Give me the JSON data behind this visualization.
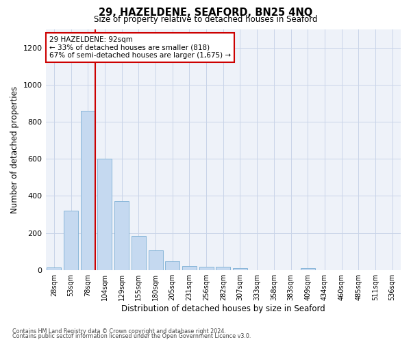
{
  "title1": "29, HAZELDENE, SEAFORD, BN25 4NQ",
  "title2": "Size of property relative to detached houses in Seaford",
  "xlabel": "Distribution of detached houses by size in Seaford",
  "ylabel": "Number of detached properties",
  "bar_labels": [
    "28sqm",
    "53sqm",
    "78sqm",
    "104sqm",
    "129sqm",
    "155sqm",
    "180sqm",
    "205sqm",
    "231sqm",
    "256sqm",
    "282sqm",
    "307sqm",
    "333sqm",
    "358sqm",
    "383sqm",
    "409sqm",
    "434sqm",
    "460sqm",
    "485sqm",
    "511sqm",
    "536sqm"
  ],
  "bar_values": [
    15,
    320,
    860,
    600,
    370,
    185,
    105,
    48,
    22,
    18,
    18,
    10,
    0,
    0,
    0,
    10,
    0,
    0,
    0,
    0,
    0
  ],
  "bar_color": "#c5d9f0",
  "bar_edge_color": "#7bafd4",
  "vline_color": "#cc0000",
  "annotation_text": "29 HAZELDENE: 92sqm\n← 33% of detached houses are smaller (818)\n67% of semi-detached houses are larger (1,675) →",
  "annotation_box_color": "#cc0000",
  "ylim": [
    0,
    1300
  ],
  "yticks": [
    0,
    200,
    400,
    600,
    800,
    1000,
    1200
  ],
  "footer1": "Contains HM Land Registry data © Crown copyright and database right 2024.",
  "footer2": "Contains public sector information licensed under the Open Government Licence v3.0.",
  "grid_color": "#c8d4e8",
  "bg_color": "#eef2f9"
}
